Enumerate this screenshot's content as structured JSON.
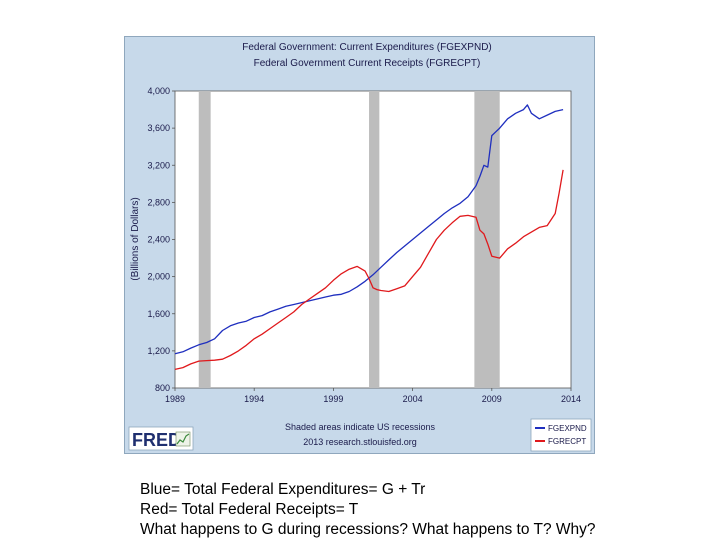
{
  "chart_data": {
    "type": "line",
    "title": "Federal Government: Current Expenditures (FGEXPND)",
    "subtitle": "Federal Government Current Receipts (FGRECPT)",
    "ylabel": "(Billions of Dollars)",
    "xlabel": "",
    "xlim": [
      1989,
      2014
    ],
    "ylim": [
      800,
      4000
    ],
    "x_ticks": [
      "1989",
      "1994",
      "1999",
      "2004",
      "2009",
      "2014"
    ],
    "y_ticks": [
      "4,000",
      "3,600",
      "3,200",
      "2,800",
      "2,400",
      "2,000",
      "1,600",
      "1,200",
      "800"
    ],
    "grid": false,
    "recessions": [
      [
        1990.5,
        1991.25
      ],
      [
        2001.25,
        2001.9
      ],
      [
        2007.9,
        2009.5
      ]
    ],
    "series": [
      {
        "name": "FGEXPND",
        "color": "#1f2fbf",
        "x": [
          1989,
          1989.5,
          1990,
          1990.5,
          1991,
          1991.5,
          1992,
          1992.5,
          1993,
          1993.5,
          1994,
          1994.5,
          1995,
          1995.5,
          1996,
          1996.5,
          1997,
          1997.5,
          1998,
          1998.5,
          1999,
          1999.5,
          2000,
          2000.5,
          2001,
          2001.5,
          2002,
          2002.5,
          2003,
          2003.5,
          2004,
          2004.5,
          2005,
          2005.5,
          2006,
          2006.5,
          2007,
          2007.5,
          2008,
          2008.25,
          2008.5,
          2008.75,
          2009,
          2009.25,
          2009.5,
          2010,
          2010.5,
          2011,
          2011.25,
          2011.5,
          2012,
          2012.5,
          2013,
          2013.5
        ],
        "values": [
          1170,
          1190,
          1230,
          1265,
          1290,
          1330,
          1420,
          1470,
          1500,
          1520,
          1560,
          1580,
          1620,
          1650,
          1680,
          1700,
          1720,
          1740,
          1760,
          1780,
          1800,
          1810,
          1840,
          1890,
          1950,
          2020,
          2100,
          2180,
          2260,
          2330,
          2400,
          2470,
          2540,
          2610,
          2680,
          2740,
          2790,
          2860,
          2980,
          3080,
          3200,
          3180,
          3520,
          3560,
          3600,
          3700,
          3760,
          3800,
          3850,
          3760,
          3700,
          3740,
          3780,
          3800
        ]
      },
      {
        "name": "FGRECPT",
        "color": "#e0191c",
        "x": [
          1989,
          1989.5,
          1990,
          1990.5,
          1991,
          1991.5,
          1992,
          1992.5,
          1993,
          1993.5,
          1994,
          1994.5,
          1995,
          1995.5,
          1996,
          1996.5,
          1997,
          1997.5,
          1998,
          1998.5,
          1999,
          1999.5,
          2000,
          2000.5,
          2001,
          2001.25,
          2001.5,
          2001.75,
          2002,
          2002.5,
          2003,
          2003.5,
          2004,
          2004.5,
          2005,
          2005.5,
          2006,
          2006.5,
          2007,
          2007.5,
          2008,
          2008.25,
          2008.5,
          2008.75,
          2009,
          2009.5,
          2010,
          2010.5,
          2011,
          2011.5,
          2012,
          2012.5,
          2013,
          2013.25,
          2013.5
        ],
        "values": [
          1000,
          1020,
          1060,
          1090,
          1095,
          1100,
          1110,
          1150,
          1200,
          1260,
          1330,
          1380,
          1440,
          1500,
          1560,
          1620,
          1700,
          1760,
          1820,
          1880,
          1960,
          2030,
          2080,
          2110,
          2060,
          1980,
          1880,
          1860,
          1850,
          1840,
          1870,
          1900,
          2000,
          2100,
          2250,
          2400,
          2500,
          2580,
          2650,
          2660,
          2640,
          2500,
          2460,
          2350,
          2220,
          2200,
          2300,
          2360,
          2430,
          2480,
          2530,
          2550,
          2680,
          2900,
          3150
        ]
      }
    ]
  },
  "branding": {
    "logo_text": "FRED"
  },
  "footer": {
    "note_line1": "Shaded areas indicate US recessions",
    "note_line2": "2013 research.stlouisfed.org"
  },
  "legend": {
    "position": "bottom-right",
    "items": [
      {
        "label": "FGEXPND",
        "color": "#1f2fbf"
      },
      {
        "label": "FGRECPT",
        "color": "#e0191c"
      }
    ]
  },
  "captions": {
    "line1": "Blue= Total Federal Expenditures= G + Tr",
    "line2": "Red= Total Federal Receipts= T",
    "line3": "What happens to G during recessions? What happens to T? Why?"
  }
}
